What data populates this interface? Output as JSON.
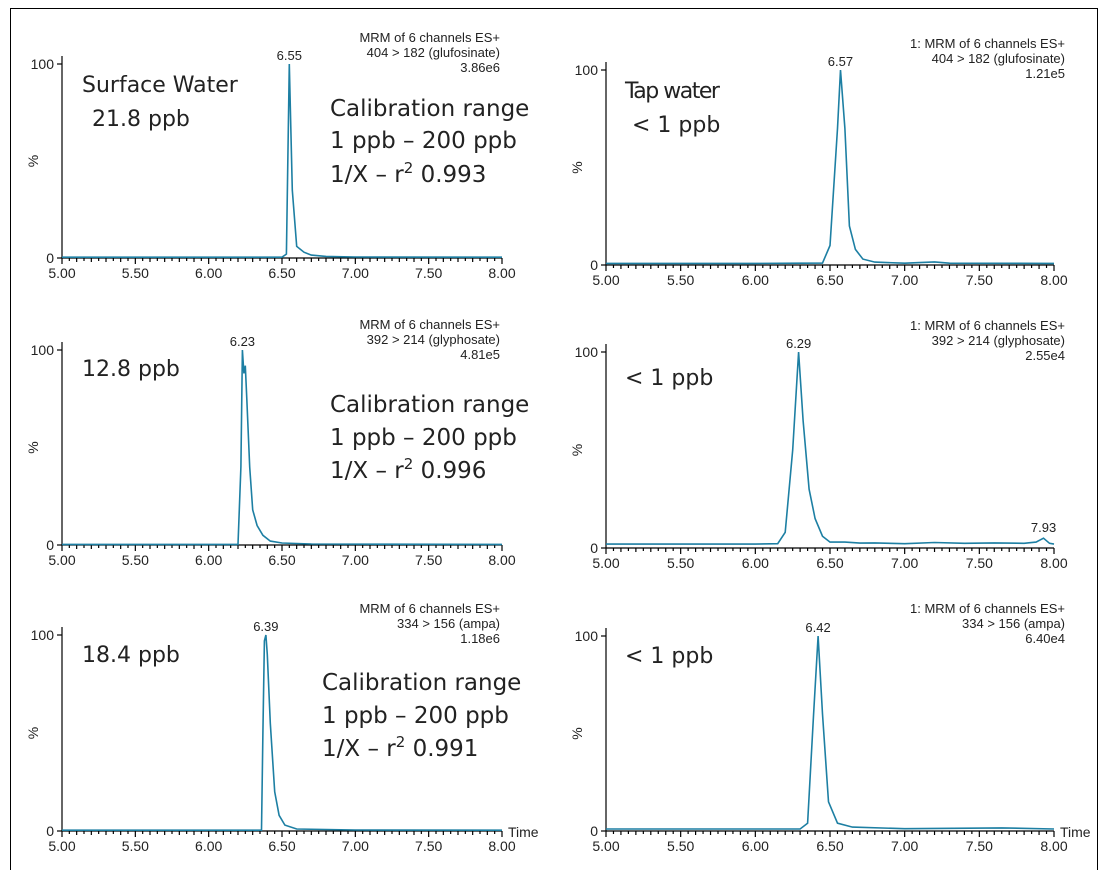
{
  "chart_data": [
    {
      "type": "line",
      "header": [
        "MRM of 6 channels ES+",
        "404 > 182 (glufosinate)",
        "3.86e6"
      ],
      "xlim": [
        5.0,
        8.0
      ],
      "ylim": [
        0,
        100
      ],
      "x_ticks": [
        "5.00",
        "5.50",
        "6.00",
        "6.50",
        "7.00",
        "7.50",
        "8.00"
      ],
      "y_tick_top": "100",
      "y_tick_bottom": "0",
      "ylabel": "%",
      "xlabel": "",
      "peak": {
        "rt": 6.55,
        "label": "6.55",
        "height": 100
      },
      "annotations": [
        "Surface Water",
        "21.8 ppb"
      ],
      "calibration": [
        "Calibration range",
        "1 ppb – 200 ppb",
        "1/X – r",
        "0.993"
      ],
      "points": [
        [
          5.0,
          0.4
        ],
        [
          6.0,
          0.4
        ],
        [
          6.5,
          0.4
        ],
        [
          6.53,
          2
        ],
        [
          6.55,
          100
        ],
        [
          6.57,
          35
        ],
        [
          6.6,
          6
        ],
        [
          6.65,
          3
        ],
        [
          6.7,
          1.5
        ],
        [
          6.8,
          0.8
        ],
        [
          7.0,
          0.5
        ],
        [
          8.0,
          0.4
        ]
      ]
    },
    {
      "type": "line",
      "header": [
        "1: MRM of 6 channels ES+",
        "404 > 182 (glufosinate)",
        "1.21e5"
      ],
      "xlim": [
        5.0,
        8.0
      ],
      "ylim": [
        0,
        100
      ],
      "x_ticks": [
        "5.00",
        "5.50",
        "6.00",
        "6.50",
        "7.00",
        "7.50",
        "8.00"
      ],
      "y_tick_top": "100",
      "y_tick_bottom": "0",
      "ylabel": "%",
      "xlabel": "",
      "peak": {
        "rt": 6.57,
        "label": "6.57",
        "height": 100
      },
      "annotations": [
        "Tap water",
        "< 1 ppb"
      ],
      "calibration": [],
      "points": [
        [
          5.0,
          0.8
        ],
        [
          6.0,
          0.8
        ],
        [
          6.3,
          0.9
        ],
        [
          6.45,
          1
        ],
        [
          6.5,
          10
        ],
        [
          6.55,
          70
        ],
        [
          6.57,
          100
        ],
        [
          6.6,
          70
        ],
        [
          6.63,
          20
        ],
        [
          6.67,
          8
        ],
        [
          6.72,
          3
        ],
        [
          6.8,
          1.5
        ],
        [
          7.0,
          0.9
        ],
        [
          7.2,
          1.6
        ],
        [
          7.3,
          0.9
        ],
        [
          8.0,
          0.8
        ]
      ]
    },
    {
      "type": "line",
      "header": [
        "MRM of 6 channels ES+",
        "392 > 214 (glyphosate)",
        "4.81e5"
      ],
      "xlim": [
        5.0,
        8.0
      ],
      "ylim": [
        0,
        100
      ],
      "x_ticks": [
        "5.00",
        "5.50",
        "6.00",
        "6.50",
        "7.00",
        "7.50",
        "8.00"
      ],
      "y_tick_top": "100",
      "y_tick_bottom": "0",
      "ylabel": "%",
      "xlabel": "",
      "peak": {
        "rt": 6.23,
        "label": "6.23",
        "height": 100
      },
      "annotations": [
        "12.8 ppb"
      ],
      "calibration": [
        "Calibration range",
        "1 ppb – 200 ppb",
        "1/X – r",
        "0.996"
      ],
      "points": [
        [
          5.0,
          0.3
        ],
        [
          6.2,
          0.3
        ],
        [
          6.22,
          40
        ],
        [
          6.23,
          100
        ],
        [
          6.24,
          88
        ],
        [
          6.25,
          92
        ],
        [
          6.26,
          75
        ],
        [
          6.28,
          40
        ],
        [
          6.3,
          18
        ],
        [
          6.33,
          10
        ],
        [
          6.37,
          5
        ],
        [
          6.42,
          2
        ],
        [
          6.5,
          1
        ],
        [
          6.7,
          0.5
        ],
        [
          8.0,
          0.3
        ]
      ]
    },
    {
      "type": "line",
      "header": [
        "1: MRM of 6 channels ES+",
        "392 > 214 (glyphosate)",
        "2.55e4"
      ],
      "xlim": [
        5.0,
        8.0
      ],
      "ylim": [
        0,
        100
      ],
      "x_ticks": [
        "5.00",
        "5.50",
        "6.00",
        "6.50",
        "7.00",
        "7.50",
        "8.00"
      ],
      "y_tick_top": "100",
      "y_tick_bottom": "0",
      "ylabel": "%",
      "xlabel": "",
      "peak": {
        "rt": 6.29,
        "label": "6.29",
        "height": 100
      },
      "secondary_peak": {
        "rt": 7.93,
        "label": "7.93",
        "height": 5
      },
      "annotations": [
        "< 1 ppb"
      ],
      "calibration": [],
      "points": [
        [
          5.0,
          2
        ],
        [
          6.0,
          2
        ],
        [
          6.15,
          2.2
        ],
        [
          6.2,
          8
        ],
        [
          6.25,
          50
        ],
        [
          6.29,
          100
        ],
        [
          6.32,
          65
        ],
        [
          6.36,
          30
        ],
        [
          6.4,
          15
        ],
        [
          6.45,
          6
        ],
        [
          6.5,
          3
        ],
        [
          6.6,
          3
        ],
        [
          6.7,
          2.5
        ],
        [
          6.8,
          2.6
        ],
        [
          7.0,
          2.2
        ],
        [
          7.2,
          2.8
        ],
        [
          7.4,
          2.4
        ],
        [
          7.6,
          2.6
        ],
        [
          7.8,
          2.4
        ],
        [
          7.88,
          3
        ],
        [
          7.93,
          5
        ],
        [
          7.97,
          2.4
        ],
        [
          8.0,
          2
        ]
      ]
    },
    {
      "type": "line",
      "header": [
        "MRM of 6 channels ES+",
        "334 > 156 (ampa)",
        "1.18e6"
      ],
      "xlim": [
        5.0,
        8.0
      ],
      "ylim": [
        0,
        100
      ],
      "x_ticks": [
        "5.00",
        "5.50",
        "6.00",
        "6.50",
        "7.00",
        "7.50",
        "8.00"
      ],
      "y_tick_top": "100",
      "y_tick_bottom": "0",
      "ylabel": "%",
      "xlabel": "Time",
      "peak": {
        "rt": 6.39,
        "label": "6.39",
        "height": 100
      },
      "annotations": [
        "18.4 ppb"
      ],
      "calibration": [
        "Calibration range",
        "1 ppb – 200 ppb",
        "1/X – r",
        "0.991"
      ],
      "points": [
        [
          5.0,
          0.4
        ],
        [
          6.36,
          0.4
        ],
        [
          6.37,
          50
        ],
        [
          6.38,
          97
        ],
        [
          6.39,
          100
        ],
        [
          6.4,
          90
        ],
        [
          6.42,
          55
        ],
        [
          6.45,
          20
        ],
        [
          6.48,
          8
        ],
        [
          6.52,
          3
        ],
        [
          6.6,
          1
        ],
        [
          7.0,
          0.5
        ],
        [
          8.0,
          0.4
        ]
      ]
    },
    {
      "type": "line",
      "header": [
        "1: MRM of 6 channels ES+",
        "334 > 156 (ampa)",
        "6.40e4"
      ],
      "xlim": [
        5.0,
        8.0
      ],
      "ylim": [
        0,
        100
      ],
      "x_ticks": [
        "5.00",
        "5.50",
        "6.00",
        "6.50",
        "7.00",
        "7.50",
        "8.00"
      ],
      "y_tick_top": "100",
      "y_tick_bottom": "0",
      "ylabel": "%",
      "xlabel": "Time",
      "peak": {
        "rt": 6.42,
        "label": "6.42",
        "height": 100
      },
      "annotations": [
        "< 1 ppb"
      ],
      "calibration": [],
      "points": [
        [
          5.0,
          1
        ],
        [
          6.3,
          1
        ],
        [
          6.35,
          4
        ],
        [
          6.39,
          60
        ],
        [
          6.42,
          100
        ],
        [
          6.45,
          60
        ],
        [
          6.49,
          15
        ],
        [
          6.55,
          4
        ],
        [
          6.65,
          2
        ],
        [
          7.0,
          1.2
        ],
        [
          7.65,
          1.6
        ],
        [
          8.0,
          1
        ]
      ]
    }
  ]
}
